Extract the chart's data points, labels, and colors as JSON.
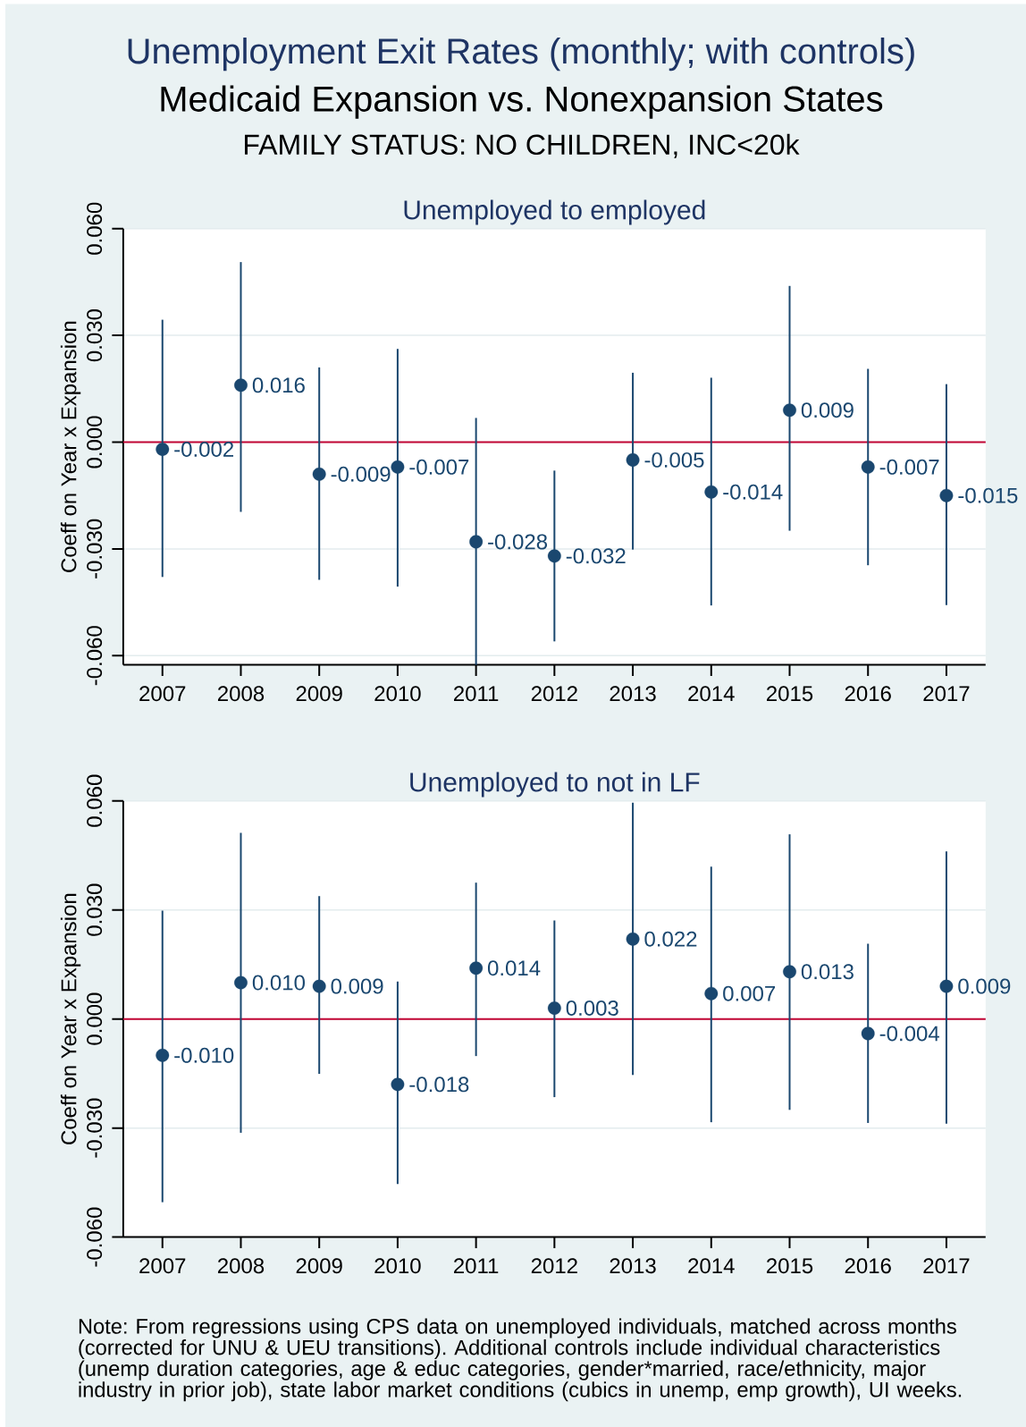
{
  "chart_data": [
    {
      "type": "scatter",
      "title": "Unemployed to employed",
      "ylabel": "Coeff on Year x Expansion",
      "categories": [
        "2007",
        "2008",
        "2009",
        "2010",
        "2011",
        "2012",
        "2013",
        "2014",
        "2015",
        "2016",
        "2017"
      ],
      "values": [
        -0.002,
        0.016,
        -0.009,
        -0.007,
        -0.028,
        -0.032,
        -0.005,
        -0.014,
        0.009,
        -0.007,
        -0.015
      ],
      "value_labels": [
        "-0.002",
        "0.016",
        "-0.009",
        "-0.007",
        "-0.028",
        "-0.032",
        "-0.005",
        "-0.014",
        "0.009",
        "-0.007",
        "-0.015"
      ],
      "errors": [
        [
          -0.0379,
          0.0344
        ],
        [
          -0.0196,
          0.0506
        ],
        [
          -0.0387,
          0.021
        ],
        [
          -0.0406,
          0.0262
        ],
        [
          -0.0626,
          0.0068
        ],
        [
          -0.056,
          -0.008
        ],
        [
          -0.0302,
          0.0195
        ],
        [
          -0.0459,
          0.0181
        ],
        [
          -0.0249,
          0.0439
        ],
        [
          -0.0346,
          0.0206
        ],
        [
          -0.0458,
          0.0163
        ]
      ],
      "color": "#1a476f",
      "marker": "circle",
      "grid": "y",
      "ylim": [
        -0.0626,
        0.06
      ],
      "yticks": [
        {
          "value": -0.06,
          "label": "-0.060"
        },
        {
          "value": -0.03,
          "label": "-0.030"
        },
        {
          "value": 0,
          "label": "0.000"
        },
        {
          "value": 0.03,
          "label": "0.030"
        },
        {
          "value": 0.06,
          "label": "0.060"
        }
      ],
      "ref_lines": [
        {
          "axis": "y",
          "value": 0,
          "color": "#c10534"
        }
      ],
      "annotations": [
        "Unemployment Exit Rates (monthly; with controls)",
        "Medicaid Expansion vs. Nonexpansion States",
        "FAMILY STATUS: NO CHILDREN, INC<20k"
      ]
    },
    {
      "type": "scatter",
      "title": "Unemployed to not in LF",
      "ylabel": "Coeff on Year x Expansion",
      "categories": [
        "2007",
        "2008",
        "2009",
        "2010",
        "2011",
        "2012",
        "2013",
        "2014",
        "2015",
        "2016",
        "2017"
      ],
      "values": [
        -0.01,
        0.01,
        0.009,
        -0.018,
        0.014,
        0.003,
        0.022,
        0.007,
        0.013,
        -0.004,
        0.009
      ],
      "value_labels": [
        "-0.010",
        "0.010",
        "0.009",
        "-0.018",
        "0.014",
        "0.003",
        "0.022",
        "0.007",
        "0.013",
        "-0.004",
        "0.009"
      ],
      "errors": [
        [
          -0.0504,
          0.0298
        ],
        [
          -0.0313,
          0.0512
        ],
        [
          -0.0151,
          0.0338
        ],
        [
          -0.0454,
          0.0103
        ],
        [
          -0.0102,
          0.0375
        ],
        [
          -0.0215,
          0.0271
        ],
        [
          -0.0154,
          0.0595
        ],
        [
          -0.0284,
          0.0419
        ],
        [
          -0.025,
          0.0508
        ],
        [
          -0.0286,
          0.0207
        ],
        [
          -0.0288,
          0.0461
        ]
      ],
      "color": "#1a476f",
      "marker": "circle",
      "grid": "y",
      "ylim": [
        -0.06,
        0.06
      ],
      "yticks": [
        {
          "value": -0.06,
          "label": "-0.060"
        },
        {
          "value": -0.03,
          "label": "-0.030"
        },
        {
          "value": 0,
          "label": "0.000"
        },
        {
          "value": 0.03,
          "label": "0.030"
        },
        {
          "value": 0.06,
          "label": "0.060"
        }
      ],
      "ref_lines": [
        {
          "axis": "y",
          "value": 0,
          "color": "#c10534"
        }
      ],
      "annotations": [
        "Note: From regressions using CPS data on unemployed individuals, matched across months (corrected for UNU & UEU transitions). Additional controls include individual characteristics (unemp duration categories, age & educ categories, gender*married, race/ethnicity, major industry in prior job), state labor market conditions (cubics in unemp, emp growth), UI weeks."
      ]
    }
  ]
}
